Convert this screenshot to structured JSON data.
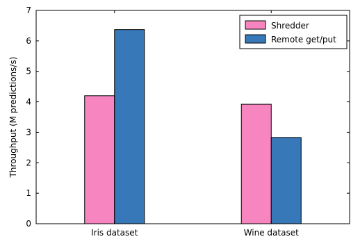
{
  "chart_data": {
    "type": "bar",
    "title": "",
    "xlabel": "",
    "ylabel": "Throughput (M predictions/s)",
    "ylim": [
      0,
      7
    ],
    "yticks": [
      0,
      1,
      2,
      3,
      4,
      5,
      6,
      7
    ],
    "grid": false,
    "legend_position": "top-right",
    "categories": [
      "Iris dataset",
      "Wine dataset"
    ],
    "series": [
      {
        "name": "Shredder",
        "color": "#f785bf",
        "values": [
          4.2,
          3.92
        ]
      },
      {
        "name": "Remote get/put",
        "color": "#3778b8",
        "values": [
          6.37,
          2.83
        ]
      }
    ]
  }
}
